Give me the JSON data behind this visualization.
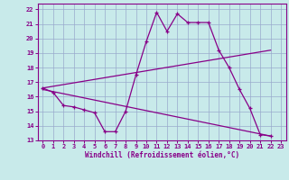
{
  "bg_color": "#c8eaea",
  "line_color": "#880088",
  "grid_color": "#99aacc",
  "xlabel": "Windchill (Refroidissement éolien,°C)",
  "xlim": [
    -0.5,
    23.5
  ],
  "ylim": [
    13,
    22.4
  ],
  "xticks": [
    0,
    1,
    2,
    3,
    4,
    5,
    6,
    7,
    8,
    9,
    10,
    11,
    12,
    13,
    14,
    15,
    16,
    17,
    18,
    19,
    20,
    21,
    22,
    23
  ],
  "yticks": [
    13,
    14,
    15,
    16,
    17,
    18,
    19,
    20,
    21,
    22
  ],
  "line1_x": [
    0,
    1,
    2,
    3,
    4,
    5,
    6,
    7,
    8,
    9,
    10,
    11,
    12,
    13,
    14,
    15,
    16,
    17,
    18,
    19,
    20,
    21,
    22
  ],
  "line1_y": [
    16.6,
    16.3,
    15.4,
    15.3,
    15.1,
    14.9,
    13.6,
    13.6,
    15.0,
    17.5,
    19.8,
    21.8,
    20.5,
    21.7,
    21.1,
    21.1,
    21.1,
    19.2,
    18.0,
    16.5,
    15.2,
    13.4,
    13.3
  ],
  "line2_x": [
    0,
    22
  ],
  "line2_y": [
    16.6,
    19.2
  ],
  "line3_x": [
    0,
    22
  ],
  "line3_y": [
    16.5,
    13.3
  ]
}
